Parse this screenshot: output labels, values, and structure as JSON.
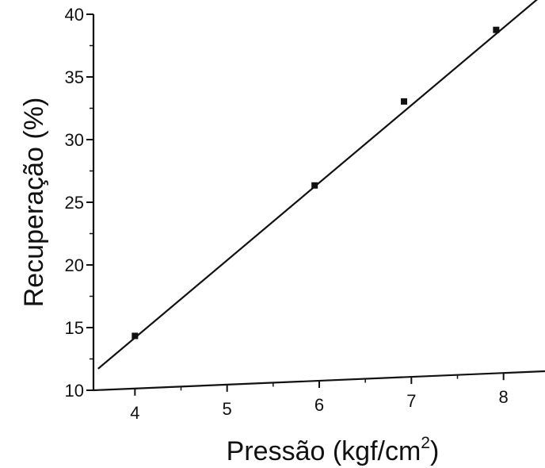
{
  "chart_data": {
    "type": "scatter",
    "title": "",
    "xlabel": "Pressão (kgf/cm",
    "xlabel_superscript": "2",
    "xlabel_suffix": ")",
    "ylabel": "Recuperação (%)",
    "xlim": [
      3.55,
      8.45
    ],
    "ylim": [
      10,
      40
    ],
    "xticks": [
      4,
      5,
      6,
      7,
      8
    ],
    "yticks": [
      10,
      15,
      20,
      25,
      30,
      35,
      40
    ],
    "grid": false,
    "series": [
      {
        "marker": "square",
        "points": [
          {
            "x": 4.0,
            "y": 14.2
          },
          {
            "x": 5.95,
            "y": 25.6
          },
          {
            "x": 6.92,
            "y": 32.0
          },
          {
            "x": 7.92,
            "y": 37.4
          }
        ]
      }
    ],
    "fit_line": {
      "from": {
        "x": 3.6,
        "y": 11.7
      },
      "to": {
        "x": 8.4,
        "y": 39.9
      }
    }
  }
}
